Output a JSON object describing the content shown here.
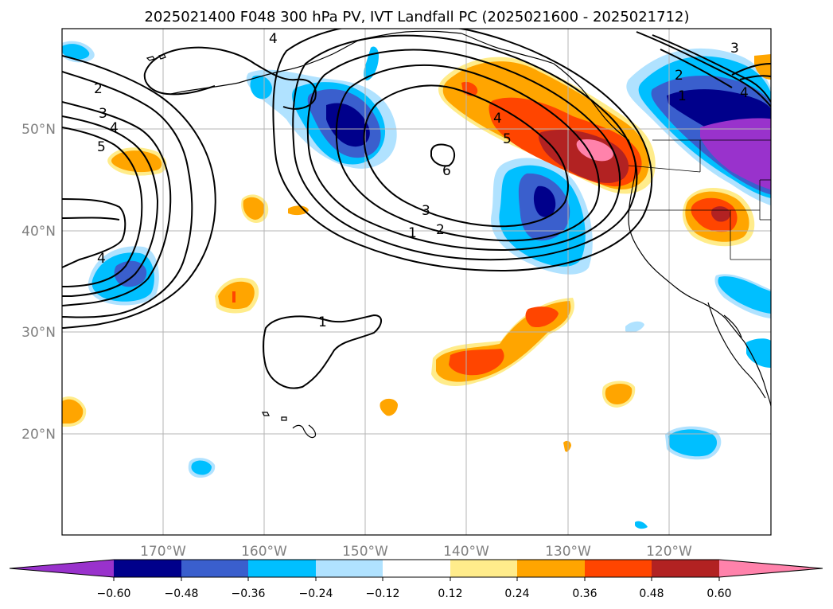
{
  "title": "2025021400 F048 300 hPa PV, IVT Landfall PC (2025021600 - 2025021712)",
  "map": {
    "lat_labels": [
      "50°N",
      "40°N",
      "30°N",
      "20°N"
    ],
    "lon_labels": [
      "170°W",
      "160°W",
      "150°W",
      "140°W",
      "130°W",
      "120°W"
    ],
    "contour_labels": [
      "1",
      "1",
      "2",
      "2",
      "3",
      "3",
      "3",
      "4",
      "4",
      "4",
      "4",
      "5",
      "5",
      "6",
      "1",
      "2",
      "4"
    ]
  },
  "colorbar": {
    "ticks": [
      "−0.60",
      "−0.48",
      "−0.36",
      "−0.24",
      "−0.12",
      "0.12",
      "0.24",
      "0.36",
      "0.48",
      "0.60"
    ],
    "colors": [
      "#9932cc",
      "#00008b",
      "#3a5fcd",
      "#00bfff",
      "#b0e2ff",
      "#ffffff",
      "#ffec8b",
      "#ffa500",
      "#ff4500",
      "#b22222",
      "#ff82ab"
    ]
  }
}
